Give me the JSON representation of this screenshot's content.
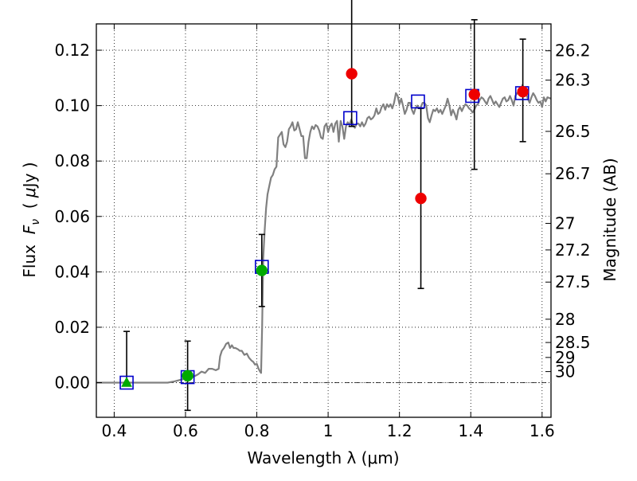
{
  "chart_data": {
    "type": "scatter",
    "title": "",
    "xlabel": "Wavelength  λ (μm)",
    "ylabel": "Flux  F_ν  ( μJy )",
    "ylabel_parts": [
      "Flux  ",
      "F",
      "ν",
      "  ( ",
      "μ",
      "Jy )"
    ],
    "y2label": "Magnitude (AB)",
    "xlim": [
      0.35,
      1.625
    ],
    "ylim": [
      -0.0125,
      0.1295
    ],
    "grid": true,
    "x_ticks": [
      {
        "v": 0.4,
        "label": "0.4"
      },
      {
        "v": 0.6,
        "label": "0.6"
      },
      {
        "v": 0.8,
        "label": "0.8"
      },
      {
        "v": 1.0,
        "label": "1"
      },
      {
        "v": 1.2,
        "label": "1.2"
      },
      {
        "v": 1.4,
        "label": "1.4"
      },
      {
        "v": 1.6,
        "label": "1.6"
      }
    ],
    "y_ticks": [
      {
        "v": 0.0,
        "label": "0.00"
      },
      {
        "v": 0.02,
        "label": "0.02"
      },
      {
        "v": 0.04,
        "label": "0.04"
      },
      {
        "v": 0.06,
        "label": "0.06"
      },
      {
        "v": 0.08,
        "label": "0.08"
      },
      {
        "v": 0.1,
        "label": "0.10"
      },
      {
        "v": 0.12,
        "label": "0.12"
      }
    ],
    "mag_ticks": [
      {
        "flux": 0.1198,
        "label": "26.2"
      },
      {
        "flux": 0.1092,
        "label": "26.3"
      },
      {
        "flux": 0.0907,
        "label": "26.5"
      },
      {
        "flux": 0.0754,
        "label": "26.7"
      },
      {
        "flux": 0.0575,
        "label": "27"
      },
      {
        "flux": 0.0479,
        "label": "27.2"
      },
      {
        "flux": 0.0363,
        "label": "27.5"
      },
      {
        "flux": 0.0229,
        "label": "28"
      },
      {
        "flux": 0.0145,
        "label": "28.5"
      },
      {
        "flux": 0.0091,
        "label": "29"
      },
      {
        "flux": 0.004,
        "label": "30"
      }
    ],
    "zero_line": 0.0,
    "colors": {
      "model": "#808080",
      "squares": "#0000cc",
      "green": "#00aa00",
      "red": "#ee0000",
      "errorbar": "#000000"
    },
    "model_sed": [
      [
        0.35,
        0.0
      ],
      [
        0.55,
        0.0
      ],
      [
        0.57,
        0.0005
      ],
      [
        0.6,
        0.0015
      ],
      [
        0.62,
        0.002
      ],
      [
        0.635,
        0.003
      ],
      [
        0.645,
        0.004
      ],
      [
        0.655,
        0.0035
      ],
      [
        0.665,
        0.005
      ],
      [
        0.675,
        0.005
      ],
      [
        0.685,
        0.0045
      ],
      [
        0.693,
        0.005
      ],
      [
        0.697,
        0.0095
      ],
      [
        0.702,
        0.0115
      ],
      [
        0.708,
        0.0125
      ],
      [
        0.714,
        0.014
      ],
      [
        0.72,
        0.0145
      ],
      [
        0.725,
        0.0125
      ],
      [
        0.73,
        0.0135
      ],
      [
        0.735,
        0.0125
      ],
      [
        0.74,
        0.0125
      ],
      [
        0.748,
        0.012
      ],
      [
        0.752,
        0.0115
      ],
      [
        0.758,
        0.0115
      ],
      [
        0.765,
        0.01
      ],
      [
        0.772,
        0.0105
      ],
      [
        0.778,
        0.009
      ],
      [
        0.785,
        0.008
      ],
      [
        0.79,
        0.0075
      ],
      [
        0.795,
        0.0065
      ],
      [
        0.8,
        0.0068
      ],
      [
        0.805,
        0.005
      ],
      [
        0.809,
        0.004
      ],
      [
        0.812,
        0.0035
      ],
      [
        0.815,
        0.02
      ],
      [
        0.818,
        0.045
      ],
      [
        0.822,
        0.055
      ],
      [
        0.826,
        0.063
      ],
      [
        0.83,
        0.068
      ],
      [
        0.835,
        0.071
      ],
      [
        0.84,
        0.074
      ],
      [
        0.845,
        0.075
      ],
      [
        0.85,
        0.077
      ],
      [
        0.855,
        0.078
      ],
      [
        0.86,
        0.0885
      ],
      [
        0.865,
        0.0895
      ],
      [
        0.87,
        0.0905
      ],
      [
        0.875,
        0.086
      ],
      [
        0.88,
        0.085
      ],
      [
        0.885,
        0.087
      ],
      [
        0.89,
        0.0915
      ],
      [
        0.895,
        0.0925
      ],
      [
        0.9,
        0.094
      ],
      [
        0.905,
        0.091
      ],
      [
        0.91,
        0.0915
      ],
      [
        0.915,
        0.094
      ],
      [
        0.92,
        0.0915
      ],
      [
        0.925,
        0.089
      ],
      [
        0.93,
        0.089
      ],
      [
        0.935,
        0.081
      ],
      [
        0.94,
        0.081
      ],
      [
        0.945,
        0.087
      ],
      [
        0.95,
        0.0905
      ],
      [
        0.955,
        0.0925
      ],
      [
        0.96,
        0.0915
      ],
      [
        0.965,
        0.093
      ],
      [
        0.97,
        0.0925
      ],
      [
        0.975,
        0.091
      ],
      [
        0.98,
        0.0885
      ],
      [
        0.985,
        0.088
      ],
      [
        0.99,
        0.0925
      ],
      [
        0.995,
        0.0935
      ],
      [
        1.0,
        0.0905
      ],
      [
        1.005,
        0.0925
      ],
      [
        1.01,
        0.0935
      ],
      [
        1.015,
        0.0905
      ],
      [
        1.02,
        0.0935
      ],
      [
        1.025,
        0.0945
      ],
      [
        1.03,
        0.087
      ],
      [
        1.035,
        0.0945
      ],
      [
        1.04,
        0.0925
      ],
      [
        1.045,
        0.088
      ],
      [
        1.05,
        0.0925
      ],
      [
        1.055,
        0.094
      ],
      [
        1.06,
        0.093
      ],
      [
        1.065,
        0.095
      ],
      [
        1.07,
        0.093
      ],
      [
        1.075,
        0.092
      ],
      [
        1.08,
        0.0935
      ],
      [
        1.085,
        0.0935
      ],
      [
        1.09,
        0.0925
      ],
      [
        1.095,
        0.094
      ],
      [
        1.1,
        0.0925
      ],
      [
        1.105,
        0.0935
      ],
      [
        1.11,
        0.0955
      ],
      [
        1.115,
        0.096
      ],
      [
        1.12,
        0.095
      ],
      [
        1.125,
        0.0955
      ],
      [
        1.13,
        0.0965
      ],
      [
        1.135,
        0.099
      ],
      [
        1.14,
        0.097
      ],
      [
        1.145,
        0.0975
      ],
      [
        1.15,
        0.0995
      ],
      [
        1.155,
        0.1005
      ],
      [
        1.16,
        0.0985
      ],
      [
        1.165,
        0.1005
      ],
      [
        1.17,
        0.0995
      ],
      [
        1.175,
        0.1005
      ],
      [
        1.18,
        0.099
      ],
      [
        1.185,
        0.101
      ],
      [
        1.19,
        0.1045
      ],
      [
        1.195,
        0.1035
      ],
      [
        1.2,
        0.1005
      ],
      [
        1.205,
        0.1025
      ],
      [
        1.21,
        0.1
      ],
      [
        1.215,
        0.097
      ],
      [
        1.22,
        0.0985
      ],
      [
        1.225,
        0.101
      ],
      [
        1.23,
        0.101
      ],
      [
        1.235,
        0.0985
      ],
      [
        1.24,
        0.097
      ],
      [
        1.245,
        0.099
      ],
      [
        1.25,
        0.1
      ],
      [
        1.255,
        0.099
      ],
      [
        1.26,
        0.0995
      ],
      [
        1.265,
        0.101
      ],
      [
        1.27,
        0.101
      ],
      [
        1.275,
        0.1
      ],
      [
        1.28,
        0.0955
      ],
      [
        1.285,
        0.094
      ],
      [
        1.29,
        0.0965
      ],
      [
        1.295,
        0.0985
      ],
      [
        1.3,
        0.098
      ],
      [
        1.305,
        0.099
      ],
      [
        1.31,
        0.0975
      ],
      [
        1.315,
        0.0985
      ],
      [
        1.32,
        0.097
      ],
      [
        1.325,
        0.0985
      ],
      [
        1.33,
        0.1
      ],
      [
        1.335,
        0.1025
      ],
      [
        1.34,
        0.1
      ],
      [
        1.345,
        0.0965
      ],
      [
        1.35,
        0.0985
      ],
      [
        1.355,
        0.097
      ],
      [
        1.36,
        0.095
      ],
      [
        1.365,
        0.0985
      ],
      [
        1.37,
        0.0995
      ],
      [
        1.375,
        0.098
      ],
      [
        1.38,
        0.0995
      ],
      [
        1.385,
        0.1005
      ],
      [
        1.39,
        0.1
      ],
      [
        1.395,
        0.099
      ],
      [
        1.4,
        0.0985
      ],
      [
        1.405,
        0.0975
      ],
      [
        1.41,
        0.0985
      ],
      [
        1.415,
        0.1
      ],
      [
        1.42,
        0.1005
      ],
      [
        1.425,
        0.102
      ],
      [
        1.43,
        0.103
      ],
      [
        1.435,
        0.1025
      ],
      [
        1.44,
        0.1015
      ],
      [
        1.445,
        0.1005
      ],
      [
        1.45,
        0.1025
      ],
      [
        1.455,
        0.1035
      ],
      [
        1.46,
        0.102
      ],
      [
        1.465,
        0.1005
      ],
      [
        1.47,
        0.1015
      ],
      [
        1.475,
        0.1005
      ],
      [
        1.48,
        0.0995
      ],
      [
        1.485,
        0.101
      ],
      [
        1.49,
        0.1025
      ],
      [
        1.495,
        0.103
      ],
      [
        1.5,
        0.1015
      ],
      [
        1.505,
        0.102
      ],
      [
        1.51,
        0.1035
      ],
      [
        1.515,
        0.102
      ],
      [
        1.52,
        0.1
      ],
      [
        1.525,
        0.1035
      ],
      [
        1.53,
        0.1045
      ],
      [
        1.535,
        0.105
      ],
      [
        1.54,
        0.1055
      ],
      [
        1.545,
        0.1075
      ],
      [
        1.55,
        0.1055
      ],
      [
        1.555,
        0.1045
      ],
      [
        1.56,
        0.1025
      ],
      [
        1.565,
        0.101
      ],
      [
        1.57,
        0.103
      ],
      [
        1.575,
        0.1045
      ],
      [
        1.58,
        0.1035
      ],
      [
        1.585,
        0.102
      ],
      [
        1.59,
        0.101
      ],
      [
        1.595,
        0.1015
      ],
      [
        1.6,
        0.0995
      ],
      [
        1.605,
        0.103
      ],
      [
        1.61,
        0.1015
      ],
      [
        1.615,
        0.103
      ],
      [
        1.625,
        0.1025
      ]
    ],
    "model_photometry_squares": [
      {
        "x": 0.435,
        "y": 0.0
      },
      {
        "x": 0.606,
        "y": 0.002
      },
      {
        "x": 0.814,
        "y": 0.0418
      },
      {
        "x": 1.062,
        "y": 0.0955
      },
      {
        "x": 1.252,
        "y": 0.1015
      },
      {
        "x": 1.404,
        "y": 0.1035
      },
      {
        "x": 1.544,
        "y": 0.1045
      }
    ],
    "observed_points": [
      {
        "x": 0.435,
        "y": 0.0,
        "err_low": 0.0,
        "err_high": 0.0185,
        "marker": "triangle",
        "color": "green"
      },
      {
        "x": 0.606,
        "y": 0.0025,
        "err_low": 0.0125,
        "err_high": 0.0125,
        "marker": "circle",
        "color": "green"
      },
      {
        "x": 0.814,
        "y": 0.0405,
        "err_low": 0.013,
        "err_high": 0.013,
        "marker": "circle",
        "color": "green"
      },
      {
        "x": 1.066,
        "y": 0.1115,
        "err_low": 0.019,
        "err_high": 0.03,
        "marker": "circle",
        "color": "red"
      },
      {
        "x": 1.26,
        "y": 0.0665,
        "err_low": 0.0325,
        "err_high": 0.0325,
        "marker": "circle",
        "color": "red"
      },
      {
        "x": 1.41,
        "y": 0.104,
        "err_low": 0.027,
        "err_high": 0.027,
        "marker": "circle",
        "color": "red"
      },
      {
        "x": 1.546,
        "y": 0.105,
        "err_low": 0.018,
        "err_high": 0.019,
        "marker": "circle",
        "color": "red"
      }
    ]
  }
}
